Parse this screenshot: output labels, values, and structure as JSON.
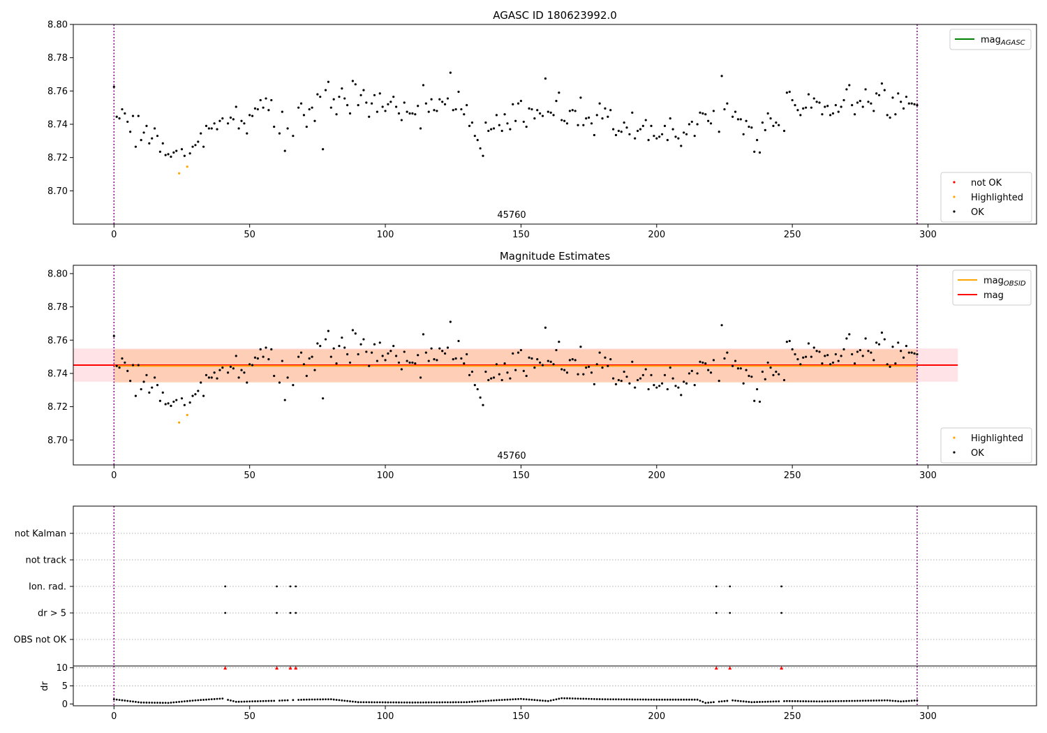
{
  "chart_data": [
    {
      "type": "scatter",
      "title": "AGASC ID 180623992.0",
      "annotation": "45760",
      "xlim": [
        -15,
        340
      ],
      "ylim": [
        8.68,
        8.8
      ],
      "xticks": [
        0,
        50,
        100,
        150,
        200,
        250,
        300
      ],
      "yticks": [
        8.7,
        8.72,
        8.74,
        8.76,
        8.78,
        8.8
      ],
      "vlines": [
        0,
        296
      ],
      "legend_lines": [
        {
          "label": "mag",
          "sub": "AGASC",
          "color": "#008000"
        }
      ],
      "legend_markers": [
        {
          "label": "not OK",
          "color": "#ff0000"
        },
        {
          "label": "Highlighted",
          "color": "#ffa500"
        },
        {
          "label": "OK",
          "color": "#000000"
        }
      ],
      "highlighted": [
        [
          24,
          8.7105
        ],
        [
          27,
          8.7145
        ]
      ],
      "series_ok_key": "ok"
    },
    {
      "type": "scatter",
      "title": "Magnitude Estimates",
      "annotation": "45760",
      "xlim": [
        -15,
        340
      ],
      "ylim": [
        8.685,
        8.805
      ],
      "xticks": [
        0,
        50,
        100,
        150,
        200,
        250,
        300
      ],
      "yticks": [
        8.7,
        8.72,
        8.74,
        8.76,
        8.78,
        8.8
      ],
      "vlines": [
        0,
        296
      ],
      "mag": 8.745,
      "mag_err_band": [
        8.735,
        8.755
      ],
      "mag_obsid": 8.7445,
      "mag_obsid_band": [
        8.7345,
        8.7545
      ],
      "band_x": [
        -15,
        311
      ],
      "obsid_x": [
        0,
        296
      ],
      "legend_lines": [
        {
          "label": "mag",
          "sub": "OBSID",
          "color": "#ffa500"
        },
        {
          "label": "mag",
          "sub": "",
          "color": "#ff0000"
        }
      ],
      "legend_markers": [
        {
          "label": "Highlighted",
          "color": "#ffa500"
        },
        {
          "label": "OK",
          "color": "#000000"
        }
      ],
      "highlighted": [
        [
          24,
          8.7105
        ],
        [
          27,
          8.715
        ]
      ]
    },
    {
      "type": "scatter",
      "title": "",
      "categories": [
        "OBS not OK",
        "dr > 5",
        "Ion. rad.",
        "not track",
        "not Kalman"
      ],
      "xlim": [
        -15,
        340
      ],
      "vlines": [
        0,
        296
      ],
      "flags": {
        "dr > 5": [
          41,
          60,
          65,
          67,
          222,
          227,
          246
        ],
        "Ion. rad.": [
          41,
          60,
          65,
          67,
          222,
          227,
          246
        ]
      }
    },
    {
      "type": "scatter",
      "title": "",
      "ylabel": "dr",
      "xlim": [
        -15,
        340
      ],
      "ylim": [
        -0.5,
        10.5
      ],
      "xticks": [
        0,
        50,
        100,
        150,
        200,
        250,
        300
      ],
      "yticks": [
        0,
        5,
        10
      ],
      "vlines": [
        0,
        296
      ],
      "clipped_at_10": [
        41,
        60,
        65,
        67,
        222,
        227,
        246
      ],
      "dr_knots": [
        [
          0,
          1.3
        ],
        [
          10,
          0.4
        ],
        [
          20,
          0.3
        ],
        [
          30,
          1.0
        ],
        [
          40,
          1.5
        ],
        [
          45,
          0.6
        ],
        [
          60,
          0.9
        ],
        [
          70,
          1.2
        ],
        [
          80,
          1.3
        ],
        [
          90,
          0.5
        ],
        [
          110,
          0.4
        ],
        [
          130,
          0.5
        ],
        [
          140,
          1.0
        ],
        [
          150,
          1.4
        ],
        [
          160,
          0.8
        ],
        [
          165,
          1.6
        ],
        [
          180,
          1.3
        ],
        [
          200,
          1.2
        ],
        [
          215,
          1.2
        ],
        [
          218,
          0.3
        ],
        [
          228,
          1.0
        ],
        [
          235,
          0.5
        ],
        [
          248,
          0.8
        ],
        [
          260,
          0.7
        ],
        [
          285,
          1.0
        ],
        [
          290,
          0.7
        ],
        [
          296,
          1.0
        ]
      ]
    }
  ],
  "ok": [
    [
      0,
      8.7625
    ],
    [
      1,
      8.7445
    ],
    [
      2,
      8.7435
    ],
    [
      3,
      8.749
    ],
    [
      4,
      8.7465
    ],
    [
      5,
      8.7415
    ],
    [
      6,
      8.7355
    ],
    [
      7,
      8.745
    ],
    [
      8,
      8.7265
    ],
    [
      9,
      8.745
    ],
    [
      10,
      8.7305
    ],
    [
      11,
      8.735
    ],
    [
      12,
      8.739
    ],
    [
      13,
      8.7285
    ],
    [
      14,
      8.7315
    ],
    [
      15,
      8.7375
    ],
    [
      16,
      8.733
    ],
    [
      17,
      8.7235
    ],
    [
      18,
      8.7285
    ],
    [
      19,
      8.7215
    ],
    [
      20,
      8.722
    ],
    [
      21,
      8.7205
    ],
    [
      22,
      8.723
    ],
    [
      23,
      8.724
    ],
    [
      25,
      8.725
    ],
    [
      26,
      8.721
    ],
    [
      28,
      8.7225
    ],
    [
      29,
      8.7265
    ],
    [
      30,
      8.7275
    ],
    [
      31,
      8.7295
    ],
    [
      32,
      8.7345
    ],
    [
      33,
      8.7265
    ],
    [
      34,
      8.739
    ],
    [
      35,
      8.7375
    ],
    [
      36,
      8.7375
    ],
    [
      37,
      8.7405
    ],
    [
      38,
      8.737
    ],
    [
      39,
      8.742
    ],
    [
      40,
      8.7435
    ],
    [
      42,
      8.7405
    ],
    [
      43,
      8.744
    ],
    [
      44,
      8.743
    ],
    [
      45,
      8.7505
    ],
    [
      46,
      8.7375
    ],
    [
      47,
      8.742
    ],
    [
      48,
      8.7405
    ],
    [
      49,
      8.7345
    ],
    [
      50,
      8.7455
    ],
    [
      51,
      8.745
    ],
    [
      52,
      8.7495
    ],
    [
      53,
      8.749
    ],
    [
      54,
      8.7545
    ],
    [
      55,
      8.75
    ],
    [
      56,
      8.7555
    ],
    [
      57,
      8.7485
    ],
    [
      58,
      8.7545
    ],
    [
      59,
      8.7385
    ],
    [
      61,
      8.7345
    ],
    [
      62,
      8.7475
    ],
    [
      63,
      8.724
    ],
    [
      64,
      8.7375
    ],
    [
      66,
      8.733
    ],
    [
      68,
      8.75
    ],
    [
      69,
      8.7525
    ],
    [
      70,
      8.7455
    ],
    [
      71,
      8.7385
    ],
    [
      72,
      8.749
    ],
    [
      73,
      8.75
    ],
    [
      74,
      8.742
    ],
    [
      75,
      8.758
    ],
    [
      76,
      8.7565
    ],
    [
      77,
      8.725
    ],
    [
      78,
      8.7605
    ],
    [
      79,
      8.7655
    ],
    [
      80,
      8.75
    ],
    [
      81,
      8.755
    ],
    [
      82,
      8.746
    ],
    [
      83,
      8.7565
    ],
    [
      84,
      8.7615
    ],
    [
      85,
      8.7555
    ],
    [
      86,
      8.7515
    ],
    [
      87,
      8.7465
    ],
    [
      88,
      8.766
    ],
    [
      89,
      8.764
    ],
    [
      90,
      8.7515
    ],
    [
      91,
      8.7575
    ],
    [
      92,
      8.7605
    ],
    [
      93,
      8.753
    ],
    [
      94,
      8.7445
    ],
    [
      95,
      8.7525
    ],
    [
      96,
      8.7575
    ],
    [
      97,
      8.7475
    ],
    [
      98,
      8.7585
    ],
    [
      99,
      8.7505
    ],
    [
      100,
      8.748
    ],
    [
      101,
      8.752
    ],
    [
      102,
      8.7535
    ],
    [
      103,
      8.7565
    ],
    [
      104,
      8.7505
    ],
    [
      105,
      8.7465
    ],
    [
      106,
      8.7425
    ],
    [
      107,
      8.753
    ],
    [
      108,
      8.7475
    ],
    [
      109,
      8.7465
    ],
    [
      110,
      8.7465
    ],
    [
      111,
      8.746
    ],
    [
      112,
      8.751
    ],
    [
      113,
      8.7375
    ],
    [
      114,
      8.7635
    ],
    [
      115,
      8.7525
    ],
    [
      116,
      8.7475
    ],
    [
      117,
      8.755
    ],
    [
      118,
      8.7485
    ],
    [
      119,
      8.748
    ],
    [
      120,
      8.755
    ],
    [
      121,
      8.7535
    ],
    [
      122,
      8.752
    ],
    [
      123,
      8.7555
    ],
    [
      124,
      8.771
    ],
    [
      125,
      8.7485
    ],
    [
      126,
      8.749
    ],
    [
      127,
      8.7595
    ],
    [
      128,
      8.749
    ],
    [
      129,
      8.746
    ],
    [
      130,
      8.7515
    ],
    [
      131,
      8.739
    ],
    [
      132,
      8.741
    ],
    [
      133,
      8.733
    ],
    [
      134,
      8.7305
    ],
    [
      135,
      8.7255
    ],
    [
      136,
      8.721
    ],
    [
      137,
      8.741
    ],
    [
      138,
      8.736
    ],
    [
      139,
      8.737
    ],
    [
      140,
      8.7375
    ],
    [
      141,
      8.7455
    ],
    [
      142,
      8.7395
    ],
    [
      143,
      8.736
    ],
    [
      144,
      8.746
    ],
    [
      145,
      8.7405
    ],
    [
      146,
      8.737
    ],
    [
      147,
      8.752
    ],
    [
      148,
      8.742
    ],
    [
      149,
      8.7525
    ],
    [
      150,
      8.754
    ],
    [
      151,
      8.7415
    ],
    [
      152,
      8.7385
    ],
    [
      153,
      8.7495
    ],
    [
      154,
      8.749
    ],
    [
      155,
      8.7435
    ],
    [
      156,
      8.7485
    ],
    [
      157,
      8.7465
    ],
    [
      158,
      8.745
    ],
    [
      159,
      8.7675
    ],
    [
      160,
      8.7475
    ],
    [
      161,
      8.747
    ],
    [
      162,
      8.7455
    ],
    [
      163,
      8.754
    ],
    [
      164,
      8.759
    ],
    [
      165,
      8.7425
    ],
    [
      166,
      8.742
    ],
    [
      167,
      8.7405
    ],
    [
      168,
      8.748
    ],
    [
      169,
      8.7485
    ],
    [
      170,
      8.748
    ],
    [
      171,
      8.7395
    ],
    [
      172,
      8.756
    ],
    [
      173,
      8.7395
    ],
    [
      174,
      8.7435
    ],
    [
      175,
      8.744
    ],
    [
      176,
      8.7405
    ],
    [
      177,
      8.7335
    ],
    [
      178,
      8.7455
    ],
    [
      179,
      8.7525
    ],
    [
      180,
      8.7435
    ],
    [
      181,
      8.7495
    ],
    [
      182,
      8.7445
    ],
    [
      183,
      8.7485
    ],
    [
      184,
      8.737
    ],
    [
      185,
      8.7335
    ],
    [
      186,
      8.736
    ],
    [
      187,
      8.7355
    ],
    [
      188,
      8.741
    ],
    [
      189,
      8.738
    ],
    [
      190,
      8.734
    ],
    [
      191,
      8.747
    ],
    [
      192,
      8.7315
    ],
    [
      193,
      8.736
    ],
    [
      194,
      8.737
    ],
    [
      195,
      8.739
    ],
    [
      196,
      8.7425
    ],
    [
      197,
      8.7305
    ],
    [
      198,
      8.739
    ],
    [
      199,
      8.733
    ],
    [
      200,
      8.7315
    ],
    [
      201,
      8.7325
    ],
    [
      202,
      8.734
    ],
    [
      203,
      8.739
    ],
    [
      204,
      8.7305
    ],
    [
      205,
      8.7435
    ],
    [
      206,
      8.737
    ],
    [
      207,
      8.7325
    ],
    [
      208,
      8.7315
    ],
    [
      209,
      8.727
    ],
    [
      210,
      8.735
    ],
    [
      211,
      8.734
    ],
    [
      212,
      8.74
    ],
    [
      213,
      8.7415
    ],
    [
      214,
      8.733
    ],
    [
      215,
      8.74
    ],
    [
      216,
      8.747
    ],
    [
      217,
      8.7465
    ],
    [
      218,
      8.746
    ],
    [
      219,
      8.742
    ],
    [
      220,
      8.7405
    ],
    [
      221,
      8.748
    ],
    [
      223,
      8.7355
    ],
    [
      224,
      8.769
    ],
    [
      225,
      8.749
    ],
    [
      226,
      8.7525
    ],
    [
      228,
      8.7445
    ],
    [
      229,
      8.7475
    ],
    [
      230,
      8.743
    ],
    [
      231,
      8.743
    ],
    [
      232,
      8.734
    ],
    [
      233,
      8.742
    ],
    [
      234,
      8.7385
    ],
    [
      235,
      8.738
    ],
    [
      236,
      8.7235
    ],
    [
      237,
      8.7305
    ],
    [
      238,
      8.723
    ],
    [
      239,
      8.741
    ],
    [
      240,
      8.7365
    ],
    [
      241,
      8.7465
    ],
    [
      242,
      8.7435
    ],
    [
      243,
      8.739
    ],
    [
      244,
      8.741
    ],
    [
      245,
      8.7395
    ],
    [
      247,
      8.736
    ],
    [
      248,
      8.759
    ],
    [
      249,
      8.7595
    ],
    [
      250,
      8.7545
    ],
    [
      251,
      8.7515
    ],
    [
      252,
      8.7485
    ],
    [
      253,
      8.7455
    ],
    [
      254,
      8.7495
    ],
    [
      255,
      8.75
    ],
    [
      256,
      8.758
    ],
    [
      257,
      8.75
    ],
    [
      258,
      8.7555
    ],
    [
      259,
      8.7535
    ],
    [
      260,
      8.753
    ],
    [
      261,
      8.746
    ],
    [
      262,
      8.7505
    ],
    [
      263,
      8.751
    ],
    [
      264,
      8.7455
    ],
    [
      265,
      8.7465
    ],
    [
      266,
      8.7515
    ],
    [
      267,
      8.7475
    ],
    [
      268,
      8.7505
    ],
    [
      269,
      8.7545
    ],
    [
      270,
      8.761
    ],
    [
      271,
      8.7635
    ],
    [
      272,
      8.7515
    ],
    [
      273,
      8.746
    ],
    [
      274,
      8.753
    ],
    [
      275,
      8.754
    ],
    [
      276,
      8.7505
    ],
    [
      277,
      8.761
    ],
    [
      278,
      8.7535
    ],
    [
      279,
      8.7525
    ],
    [
      280,
      8.748
    ],
    [
      281,
      8.7585
    ],
    [
      282,
      8.7575
    ],
    [
      283,
      8.7645
    ],
    [
      284,
      8.7605
    ],
    [
      285,
      8.7455
    ],
    [
      286,
      8.744
    ],
    [
      287,
      8.756
    ],
    [
      288,
      8.746
    ],
    [
      289,
      8.7585
    ],
    [
      290,
      8.7535
    ],
    [
      291,
      8.7495
    ],
    [
      292,
      8.7565
    ],
    [
      293,
      8.7525
    ],
    [
      294,
      8.7525
    ],
    [
      295,
      8.752
    ],
    [
      296,
      8.7515
    ]
  ]
}
